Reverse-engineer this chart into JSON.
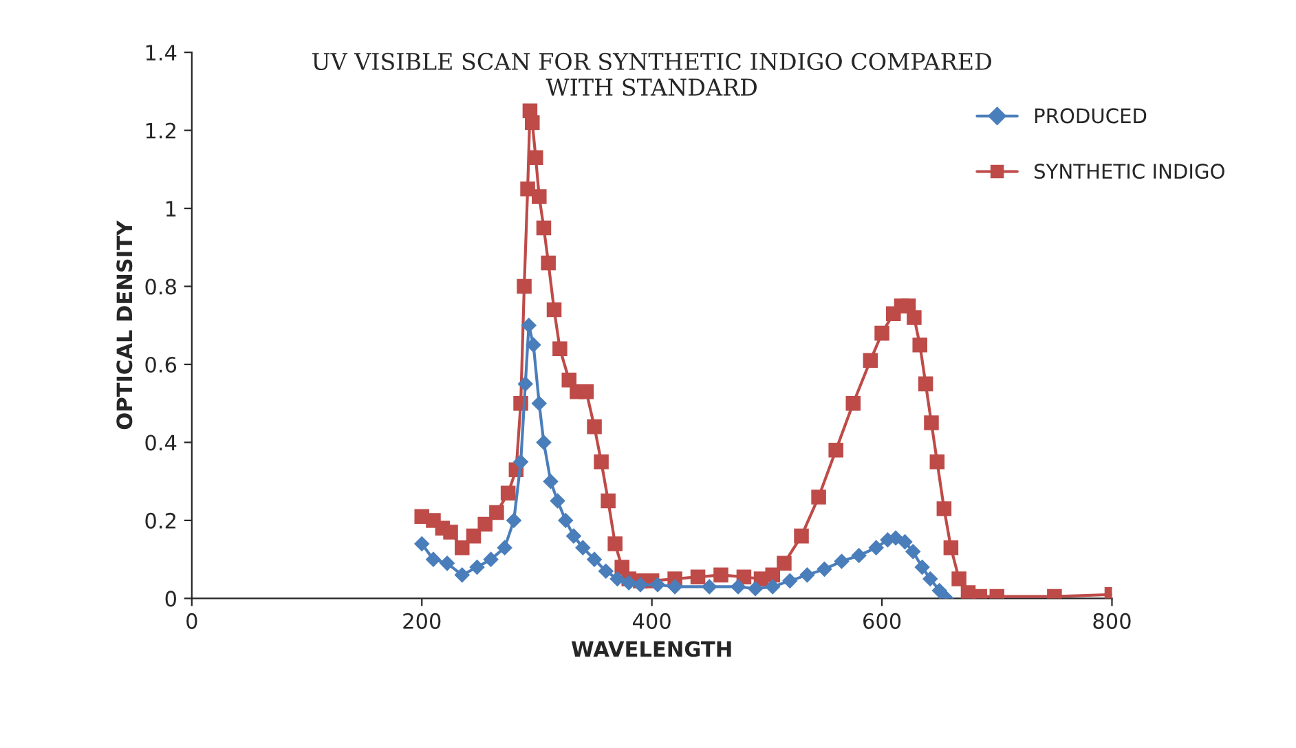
{
  "chart_data": {
    "type": "line",
    "title": "UV VISIBLE SCAN FOR SYNTHETIC INDIGO COMPARED\nWITH STANDARD",
    "xlabel": "WAVELENGTH",
    "ylabel": "OPTICAL DENSITY",
    "xlim": [
      0,
      800
    ],
    "xticks": [
      0,
      200,
      400,
      600,
      800
    ],
    "ylim": [
      0,
      1.4
    ],
    "yticks": [
      0,
      0.2,
      0.4,
      0.6,
      0.8,
      1,
      1.2,
      1.4
    ],
    "grid": false,
    "legend": "right",
    "series": [
      {
        "name": "PRODUCED",
        "color": "#4a7ebb",
        "marker": "diamond",
        "x": [
          200,
          210,
          222,
          235,
          248,
          260,
          272,
          280,
          286,
          290,
          293,
          297,
          302,
          306,
          312,
          318,
          325,
          332,
          340,
          350,
          360,
          370,
          380,
          390,
          405,
          420,
          450,
          475,
          490,
          505,
          520,
          535,
          550,
          565,
          580,
          595,
          605,
          612,
          620,
          627,
          635,
          642,
          650,
          656
        ],
        "values": [
          0.14,
          0.1,
          0.09,
          0.06,
          0.08,
          0.1,
          0.13,
          0.2,
          0.35,
          0.55,
          0.7,
          0.65,
          0.5,
          0.4,
          0.3,
          0.25,
          0.2,
          0.16,
          0.13,
          0.1,
          0.07,
          0.05,
          0.04,
          0.035,
          0.035,
          0.03,
          0.03,
          0.03,
          0.025,
          0.03,
          0.045,
          0.06,
          0.075,
          0.095,
          0.11,
          0.13,
          0.15,
          0.155,
          0.145,
          0.12,
          0.08,
          0.05,
          0.02,
          0.0
        ]
      },
      {
        "name": "SYNTHETIC INDIGO",
        "color": "#be4b48",
        "marker": "square",
        "x": [
          200,
          210,
          218,
          225,
          235,
          245,
          255,
          265,
          275,
          282,
          286,
          289,
          292,
          294,
          296,
          299,
          302,
          306,
          310,
          315,
          320,
          328,
          335,
          343,
          350,
          356,
          362,
          368,
          374,
          380,
          390,
          400,
          420,
          440,
          460,
          480,
          495,
          505,
          515,
          530,
          545,
          560,
          575,
          590,
          600,
          610,
          617,
          623,
          628,
          633,
          638,
          643,
          648,
          654,
          660,
          667,
          675,
          685,
          700,
          750,
          800
        ],
        "values": [
          0.21,
          0.2,
          0.18,
          0.17,
          0.13,
          0.16,
          0.19,
          0.22,
          0.27,
          0.33,
          0.5,
          0.8,
          1.05,
          1.25,
          1.22,
          1.13,
          1.03,
          0.95,
          0.86,
          0.74,
          0.64,
          0.56,
          0.53,
          0.53,
          0.44,
          0.35,
          0.25,
          0.14,
          0.08,
          0.05,
          0.045,
          0.045,
          0.05,
          0.055,
          0.06,
          0.055,
          0.05,
          0.06,
          0.09,
          0.16,
          0.26,
          0.38,
          0.5,
          0.61,
          0.68,
          0.73,
          0.75,
          0.75,
          0.72,
          0.65,
          0.55,
          0.45,
          0.35,
          0.23,
          0.13,
          0.05,
          0.015,
          0.005,
          0.005,
          0.005,
          0.01
        ]
      }
    ]
  }
}
